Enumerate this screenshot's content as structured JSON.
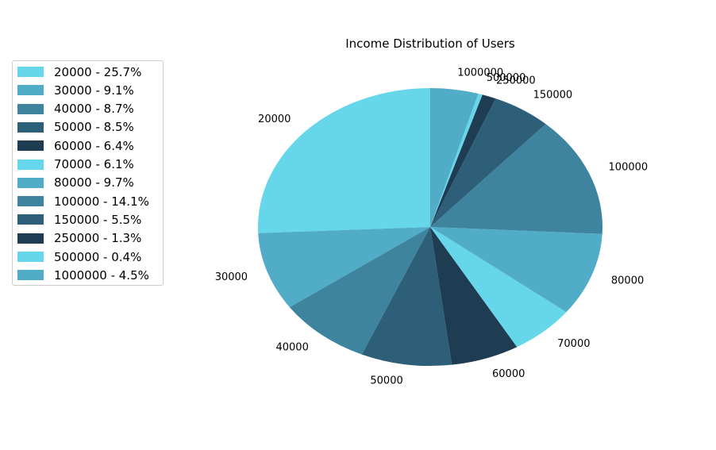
{
  "chart_data": {
    "type": "pie",
    "title": "Income Distribution of Users",
    "categories": [
      "20000",
      "30000",
      "40000",
      "50000",
      "60000",
      "70000",
      "80000",
      "100000",
      "150000",
      "250000",
      "500000",
      "1000000"
    ],
    "values": [
      25.7,
      9.1,
      8.7,
      8.5,
      6.4,
      6.1,
      9.7,
      14.1,
      5.5,
      1.3,
      0.4,
      4.5
    ],
    "legend_labels": [
      "20000 - 25.7%",
      "30000 - 9.1%",
      "40000 - 8.7%",
      "50000 - 8.5%",
      "60000 - 6.4%",
      "70000 - 6.1%",
      "80000 - 9.7%",
      "100000 - 14.1%",
      "150000 - 5.5%",
      "250000 - 1.3%",
      "500000 - 0.4%",
      "1000000 - 4.5%"
    ],
    "colors": [
      "#66d7ea",
      "#51adc7",
      "#3e849e",
      "#2d5f79",
      "#1e3c52",
      "#66d7ea",
      "#51adc7",
      "#3e849e",
      "#2d5f79",
      "#1e3c52",
      "#66d7ea",
      "#51adc7"
    ],
    "start_angle_deg": 90,
    "direction": "counterclockwise",
    "legend_position": "upper-left"
  }
}
